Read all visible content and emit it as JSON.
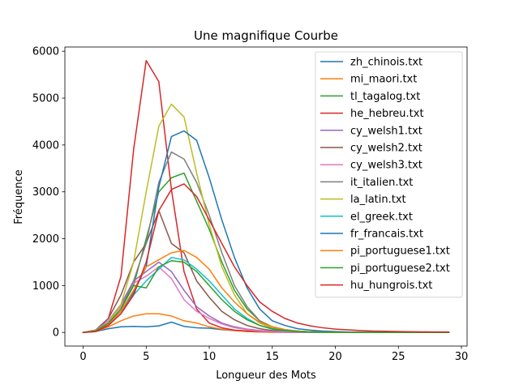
{
  "chart_data": {
    "type": "line",
    "title": "Une magnifique Courbe",
    "xlabel": "Longueur des Mots",
    "ylabel": "Fréquence",
    "xlim": [
      -1.45,
      30.45
    ],
    "ylim": [
      -290,
      6090
    ],
    "xticks": [
      0,
      5,
      10,
      15,
      20,
      25,
      30
    ],
    "yticks": [
      0,
      1000,
      2000,
      3000,
      4000,
      5000,
      6000
    ],
    "legend_position": "top-right",
    "grid": false,
    "x": [
      0,
      1,
      2,
      3,
      4,
      5,
      6,
      7,
      8,
      9,
      10,
      11,
      12,
      13,
      14,
      15,
      16,
      17,
      18,
      19,
      20,
      21,
      22,
      23,
      24,
      25,
      26,
      27,
      28,
      29
    ],
    "series": [
      {
        "name": "zh_chinois.txt",
        "color": "#1f77b4",
        "values": [
          0,
          20,
          80,
          120,
          130,
          120,
          140,
          220,
          130,
          100,
          90,
          60,
          40,
          30,
          20,
          15,
          10,
          8,
          6,
          5,
          4,
          3,
          3,
          2,
          2,
          2,
          1,
          1,
          1,
          1
        ]
      },
      {
        "name": "mi_maori.txt",
        "color": "#ff7f0e",
        "values": [
          0,
          20,
          120,
          250,
          350,
          400,
          400,
          350,
          250,
          200,
          120,
          70,
          40,
          20,
          10,
          5,
          3,
          2,
          1,
          1,
          1,
          0,
          0,
          0,
          0,
          0,
          0,
          0,
          0,
          0
        ]
      },
      {
        "name": "tl_tagalog.txt",
        "color": "#2ca02c",
        "values": [
          0,
          30,
          200,
          500,
          1000,
          2000,
          3000,
          3300,
          3400,
          2800,
          2200,
          1500,
          900,
          500,
          250,
          120,
          60,
          30,
          15,
          10,
          5,
          3,
          2,
          1,
          1,
          1,
          0,
          0,
          0,
          0
        ]
      },
      {
        "name": "he_hebreu.txt",
        "color": "#d62728",
        "values": [
          0,
          50,
          300,
          1200,
          3900,
          5800,
          5350,
          3050,
          1300,
          500,
          200,
          100,
          50,
          30,
          20,
          10,
          5,
          3,
          2,
          1,
          1,
          0,
          0,
          0,
          0,
          0,
          0,
          0,
          0,
          0
        ]
      },
      {
        "name": "cy_welsh1.txt",
        "color": "#9467bd",
        "values": [
          0,
          40,
          250,
          600,
          1100,
          1300,
          1500,
          1300,
          900,
          550,
          350,
          200,
          120,
          70,
          40,
          20,
          10,
          5,
          3,
          2,
          1,
          1,
          0,
          0,
          0,
          0,
          0,
          0,
          0,
          0
        ]
      },
      {
        "name": "cy_welsh2.txt",
        "color": "#8c564b",
        "values": [
          0,
          50,
          300,
          800,
          1500,
          1900,
          2600,
          1900,
          1700,
          1100,
          750,
          450,
          270,
          150,
          80,
          40,
          20,
          10,
          5,
          3,
          2,
          1,
          0,
          0,
          0,
          0,
          0,
          0,
          0,
          0
        ]
      },
      {
        "name": "cy_welsh3.txt",
        "color": "#e377c2",
        "values": [
          0,
          40,
          250,
          550,
          1050,
          1200,
          1400,
          1150,
          700,
          450,
          300,
          180,
          100,
          60,
          30,
          15,
          8,
          4,
          2,
          1,
          1,
          0,
          0,
          0,
          0,
          0,
          0,
          0,
          0,
          0
        ]
      },
      {
        "name": "it_italien.txt",
        "color": "#7f7f7f",
        "values": [
          0,
          40,
          200,
          500,
          1100,
          1900,
          3200,
          3850,
          3700,
          3200,
          2500,
          1700,
          1000,
          550,
          250,
          120,
          60,
          30,
          15,
          8,
          4,
          2,
          1,
          1,
          0,
          0,
          0,
          0,
          0,
          0
        ]
      },
      {
        "name": "la_latin.txt",
        "color": "#bcbd22",
        "values": [
          0,
          40,
          200,
          600,
          1500,
          3000,
          4400,
          4870,
          4600,
          3400,
          2300,
          1400,
          800,
          400,
          200,
          90,
          40,
          20,
          10,
          5,
          2,
          1,
          1,
          0,
          0,
          0,
          0,
          0,
          0,
          0
        ]
      },
      {
        "name": "el_greek.txt",
        "color": "#17becf",
        "values": [
          0,
          30,
          150,
          400,
          800,
          1100,
          1350,
          1600,
          1550,
          1350,
          1100,
          800,
          500,
          300,
          150,
          70,
          30,
          15,
          8,
          4,
          2,
          1,
          1,
          0,
          0,
          0,
          0,
          0,
          0,
          0
        ]
      },
      {
        "name": "fr_francais.txt",
        "color": "#1f77b4",
        "values": [
          0,
          30,
          200,
          450,
          850,
          1400,
          3100,
          4180,
          4300,
          4100,
          3300,
          2400,
          1600,
          950,
          500,
          250,
          150,
          80,
          50,
          30,
          20,
          10,
          5,
          3,
          2,
          1,
          1,
          1,
          1,
          1
        ]
      },
      {
        "name": "pi_portuguese1.txt",
        "color": "#ff7f0e",
        "values": [
          0,
          30,
          180,
          450,
          900,
          1400,
          1550,
          1700,
          1750,
          1600,
          1350,
          950,
          650,
          400,
          220,
          120,
          60,
          30,
          15,
          8,
          4,
          2,
          1,
          1,
          0,
          0,
          0,
          0,
          0,
          0
        ]
      },
      {
        "name": "pi_portuguese2.txt",
        "color": "#2ca02c",
        "values": [
          0,
          30,
          200,
          500,
          1000,
          950,
          1400,
          1530,
          1500,
          1300,
          1000,
          700,
          450,
          270,
          150,
          80,
          40,
          20,
          10,
          5,
          3,
          1,
          1,
          0,
          0,
          0,
          0,
          0,
          0,
          0
        ]
      },
      {
        "name": "hu_hungrois.txt",
        "color": "#d62728",
        "values": [
          0,
          20,
          150,
          400,
          800,
          1500,
          2600,
          3050,
          3170,
          2900,
          2400,
          1900,
          1400,
          1000,
          650,
          450,
          300,
          200,
          140,
          100,
          70,
          55,
          40,
          30,
          25,
          20,
          15,
          12,
          10,
          10
        ]
      }
    ]
  }
}
